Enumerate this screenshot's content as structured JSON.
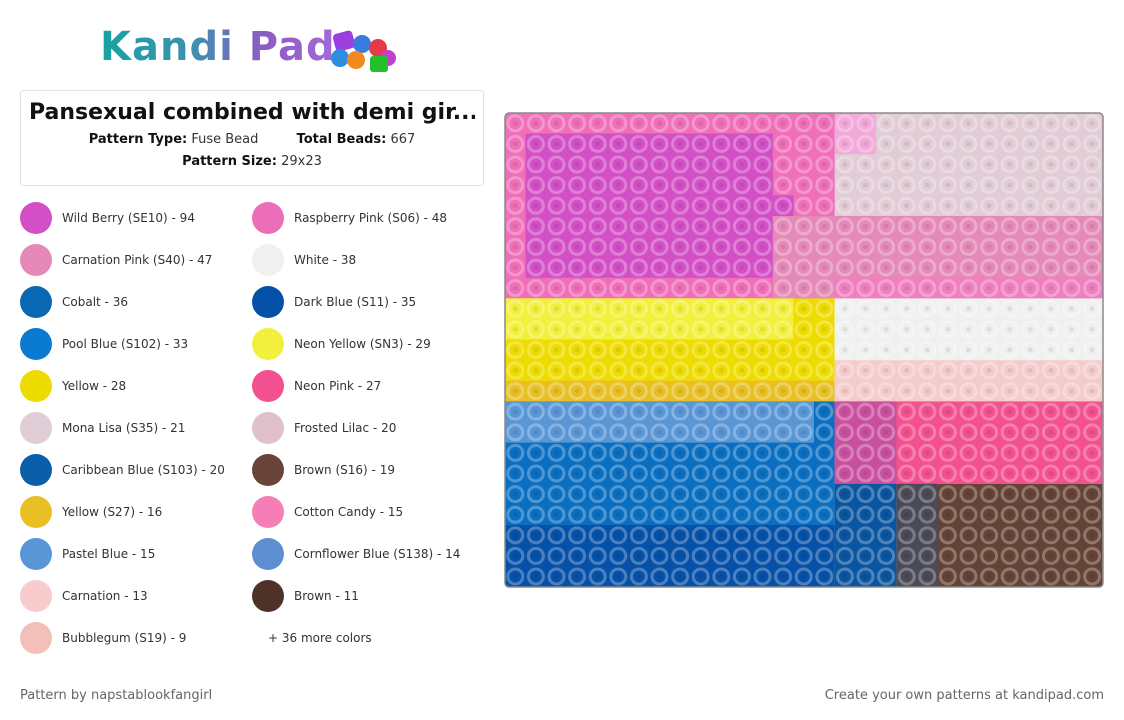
{
  "logo": "Kandi Pad",
  "title": "Pansexual combined with demi gir...",
  "pattern_type_label": "Pattern Type:",
  "pattern_type": "Fuse Bead",
  "total_beads_label": "Total Beads:",
  "total_beads": 667,
  "pattern_size_label": "Pattern Size:",
  "pattern_size": "29x23",
  "colors": [
    {
      "name": "Wild Berry (SE10) - 94",
      "color": "#d24fc6"
    },
    {
      "name": "Raspberry Pink (S06) - 48",
      "color": "#ec6eb8"
    },
    {
      "name": "Carnation Pink (S40) - 47",
      "color": "#e489b8"
    },
    {
      "name": "White - 38",
      "color": "#f0f0f0"
    },
    {
      "name": "Cobalt - 36",
      "color": "#0a67b3"
    },
    {
      "name": "Dark Blue (S11) - 35",
      "color": "#0651a8"
    },
    {
      "name": "Pool Blue (S102) - 33",
      "color": "#0a7ad0"
    },
    {
      "name": "Neon Yellow (SN3) - 29",
      "color": "#f2f03c"
    },
    {
      "name": "Yellow - 28",
      "color": "#eedc00"
    },
    {
      "name": "Neon Pink - 27",
      "color": "#f2508e"
    },
    {
      "name": "Mona Lisa (S35) - 21",
      "color": "#e0cdd6"
    },
    {
      "name": "Frosted Lilac - 20",
      "color": "#e0c0cc"
    },
    {
      "name": "Caribbean Blue (S103) - 20",
      "color": "#0a5eaa"
    },
    {
      "name": "Brown (S16) - 19",
      "color": "#6a4438"
    },
    {
      "name": "Yellow (S27) - 16",
      "color": "#e8c024"
    },
    {
      "name": "Cotton Candy - 15",
      "color": "#f67eb6"
    },
    {
      "name": "Pastel Blue - 15",
      "color": "#5896d6"
    },
    {
      "name": "Cornflower Blue (S138) - 14",
      "color": "#5e8ed2"
    },
    {
      "name": "Carnation - 13",
      "color": "#f8cccc"
    },
    {
      "name": "Brown - 11",
      "color": "#4e3228"
    },
    {
      "name": "Bubblegum (S19) - 9",
      "color": "#f2c0b8"
    }
  ],
  "more_colors": "+ 36 more colors",
  "footer_left": "Pattern by napstablookfangirl",
  "footer_right": "Create your own patterns at kandipad.com"
}
